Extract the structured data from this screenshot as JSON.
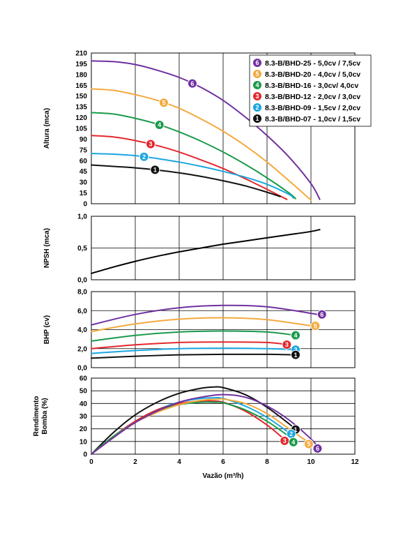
{
  "series_meta": [
    {
      "id": "6",
      "name": "8.3-B/BHD-25 - 5,0cv / 7,5cv",
      "color": "#7030a0"
    },
    {
      "id": "5",
      "name": "8.3-B/BHD-20 - 4,0cv / 5,0cv",
      "color": "#f4a93d"
    },
    {
      "id": "4",
      "name": "8.3-B/BHD-16 - 3,0cv/ 4,0cv",
      "color": "#1a9a4a"
    },
    {
      "id": "3",
      "name": "8.3-B/BHD-12 - 2,0cv / 3,0cv",
      "color": "#e2282d"
    },
    {
      "id": "2",
      "name": "8.3-B/BHD-09 - 1,5cv / 2,0cv",
      "color": "#1aa6e0"
    },
    {
      "id": "1",
      "name": "8.3-B/BHD-07 - 1,0cv / 1,5cv",
      "color": "#111111"
    }
  ],
  "chart_data": [
    {
      "type": "line",
      "panel": "altura",
      "ylabel": "Altura (mca)",
      "xlabel": "",
      "xlim": [
        0,
        12
      ],
      "ylim": [
        0,
        210
      ],
      "yticks": [
        "0",
        "15",
        "30",
        "45",
        "60",
        "75",
        "90",
        "105",
        "120",
        "135",
        "150",
        "165",
        "180",
        "195",
        "210"
      ],
      "legend": "top-right",
      "grid": true,
      "series": [
        {
          "name": "8.3-B/BHD-25 - 5,0cv / 7,5cv",
          "label": "6",
          "x": [
            0,
            1,
            2,
            3,
            4,
            5,
            6,
            7,
            8,
            9,
            10,
            10.4
          ],
          "y": [
            199,
            198,
            194,
            186,
            176,
            162,
            144,
            121,
            95,
            65,
            28,
            6
          ],
          "marker_x": 4.6
        },
        {
          "name": "8.3-B/BHD-20 - 4,0cv / 5,0cv",
          "label": "5",
          "x": [
            0,
            1,
            2,
            3,
            4,
            5,
            6,
            7,
            8,
            9,
            10
          ],
          "y": [
            160,
            158,
            152,
            144,
            133,
            118,
            101,
            81,
            58,
            32,
            5
          ],
          "marker_x": 3.3
        },
        {
          "name": "8.3-B/BHD-16 - 3,0cv/ 4,0cv",
          "label": "4",
          "x": [
            0,
            1,
            2,
            3,
            4,
            5,
            6,
            7,
            8,
            9,
            9.3
          ],
          "y": [
            127,
            125,
            119,
            111,
            100,
            87,
            72,
            55,
            36,
            15,
            7
          ],
          "marker_x": 3.1
        },
        {
          "name": "8.3-B/BHD-12 - 2,0cv / 3,0cv",
          "label": "3",
          "x": [
            0,
            1,
            2,
            3,
            4,
            5,
            6,
            7,
            8,
            8.9
          ],
          "y": [
            95,
            93,
            88,
            81,
            72,
            61,
            49,
            35,
            20,
            6
          ],
          "marker_x": 2.7
        },
        {
          "name": "8.3-B/BHD-09 - 1,5cv / 2,0cv",
          "label": "2",
          "x": [
            0,
            1,
            2,
            3,
            4,
            5,
            6,
            7,
            8,
            9,
            9.2
          ],
          "y": [
            70,
            69,
            67,
            63,
            58,
            52,
            45,
            37,
            27,
            13,
            8
          ],
          "marker_x": 2.4
        },
        {
          "name": "8.3-B/BHD-07 - 1,0cv / 1,5cv",
          "label": "1",
          "x": [
            0,
            1,
            2,
            3,
            4,
            5,
            6,
            7,
            8,
            8.6
          ],
          "y": [
            54,
            52,
            50,
            47,
            43,
            38,
            32,
            25,
            16,
            10
          ],
          "marker_x": 2.9
        }
      ]
    },
    {
      "type": "line",
      "panel": "npsh",
      "ylabel": "NPSH (mca)",
      "xlabel": "",
      "xlim": [
        0,
        12
      ],
      "ylim": [
        0,
        1
      ],
      "yticks": [
        "0,0",
        "0,5",
        "1,0"
      ],
      "grid": true,
      "series": [
        {
          "name": "NPSH",
          "x": [
            0,
            1,
            2,
            3,
            4,
            5,
            6,
            7,
            8,
            9,
            10,
            10.4
          ],
          "y": [
            0.1,
            0.2,
            0.29,
            0.37,
            0.44,
            0.5,
            0.56,
            0.61,
            0.66,
            0.71,
            0.76,
            0.79
          ]
        }
      ]
    },
    {
      "type": "line",
      "panel": "bhp",
      "ylabel": "BHP (cv)",
      "xlabel": "",
      "xlim": [
        0,
        12
      ],
      "ylim": [
        0,
        8
      ],
      "yticks": [
        "0,0",
        "2,0",
        "4,0",
        "6,0",
        "8,0"
      ],
      "grid": true,
      "series": [
        {
          "name": "6",
          "label": "6",
          "x": [
            0,
            2,
            4,
            6,
            8,
            10.3
          ],
          "y": [
            4.5,
            5.6,
            6.3,
            6.55,
            6.4,
            5.6
          ],
          "marker_x": 10.5
        },
        {
          "name": "5",
          "label": "5",
          "x": [
            0,
            2,
            4,
            6,
            8,
            10
          ],
          "y": [
            3.8,
            4.6,
            5.1,
            5.25,
            5.05,
            4.4
          ],
          "marker_x": 10.2
        },
        {
          "name": "4",
          "label": "4",
          "x": [
            0,
            2,
            4,
            6,
            8,
            9.3
          ],
          "y": [
            2.8,
            3.4,
            3.75,
            3.85,
            3.75,
            3.4
          ],
          "marker_x": 9.3
        },
        {
          "name": "3",
          "label": "3",
          "x": [
            0,
            2,
            4,
            6,
            8,
            9
          ],
          "y": [
            2.0,
            2.4,
            2.65,
            2.7,
            2.65,
            2.4
          ],
          "marker_x": 8.9
        },
        {
          "name": "2",
          "label": "2",
          "x": [
            0,
            2,
            4,
            6,
            8,
            9.2
          ],
          "y": [
            1.5,
            1.8,
            2.0,
            2.05,
            2.0,
            1.9
          ],
          "marker_x": 9.3
        },
        {
          "name": "1",
          "label": "1",
          "x": [
            0,
            2,
            4,
            6,
            8,
            9.2
          ],
          "y": [
            1.0,
            1.2,
            1.35,
            1.4,
            1.4,
            1.35
          ],
          "marker_x": 9.3
        }
      ]
    },
    {
      "type": "line",
      "panel": "rendimento",
      "ylabel": "Rendimento Bomba (%)",
      "ylabel_lines": [
        "Rendimento",
        "Bomba (%)"
      ],
      "xlabel": "Vazão (m³/h)",
      "xlim": [
        0,
        12
      ],
      "ylim": [
        0,
        60
      ],
      "xticks": [
        "0",
        "2",
        "4",
        "6",
        "8",
        "10",
        "12"
      ],
      "yticks": [
        "0",
        "10",
        "20",
        "30",
        "40",
        "50",
        "60"
      ],
      "grid": true,
      "series": [
        {
          "name": "1",
          "label": "1",
          "x": [
            0,
            1,
            2,
            3,
            4,
            5,
            5.6,
            6,
            7,
            8,
            9,
            9.4
          ],
          "y": [
            0,
            17,
            31,
            41,
            48,
            52,
            53,
            52.5,
            47,
            37,
            24,
            18
          ],
          "marker_x": 9.3,
          "marker_y": 19.5
        },
        {
          "name": "2",
          "label": "2",
          "x": [
            0,
            1,
            2,
            3,
            4,
            5,
            5.6,
            6,
            7,
            8,
            9,
            9.1
          ],
          "y": [
            0,
            14,
            26,
            35,
            41,
            44,
            44.5,
            44,
            38,
            29,
            17,
            16
          ],
          "marker_x": 9.1,
          "marker_y": 16
        },
        {
          "name": "3",
          "label": "3",
          "x": [
            0,
            1,
            2,
            3,
            4,
            5,
            5.5,
            6,
            7,
            8,
            8.9
          ],
          "y": [
            0,
            14,
            26,
            35,
            40,
            42,
            42,
            41,
            34,
            23,
            10
          ],
          "marker_x": 8.8,
          "marker_y": 10.5
        },
        {
          "name": "4",
          "label": "4",
          "x": [
            0,
            1,
            2,
            3,
            4,
            5,
            5.6,
            6,
            7,
            8,
            9,
            9.3
          ],
          "y": [
            0,
            14,
            25,
            34,
            39,
            41,
            41,
            40.5,
            35,
            26,
            14,
            10
          ],
          "marker_x": 9.2,
          "marker_y": 9.5
        },
        {
          "name": "5",
          "label": "5",
          "x": [
            0,
            1,
            2,
            3,
            4,
            5,
            5.8,
            6,
            7,
            8,
            9,
            10
          ],
          "y": [
            0,
            13,
            25,
            33,
            39,
            42.5,
            43.5,
            43.5,
            40,
            32,
            20,
            8
          ],
          "marker_x": 9.9,
          "marker_y": 8
        },
        {
          "name": "6",
          "label": "6",
          "x": [
            0,
            1,
            2,
            3,
            4,
            5,
            6,
            7,
            8,
            9,
            10,
            10.3
          ],
          "y": [
            0,
            13,
            25,
            34,
            41,
            45,
            47,
            45,
            38,
            27,
            12,
            6
          ],
          "marker_x": 10.3,
          "marker_y": 4.5
        }
      ]
    }
  ]
}
